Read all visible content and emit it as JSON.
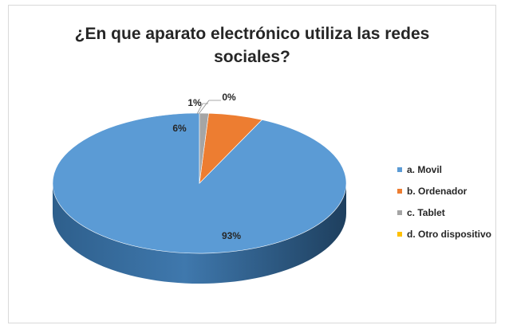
{
  "chart_data": {
    "type": "pie",
    "title_lines": [
      "¿En que aparato electrónico utiliza las redes",
      "sociales?"
    ],
    "categories": [
      "a. Movil",
      "b. Ordenador",
      "c. Tablet",
      "d. Otro dispositivo"
    ],
    "values": [
      93,
      6,
      1,
      0
    ],
    "data_labels": [
      "93%",
      "6%",
      "1%",
      "0%"
    ],
    "colors": [
      "#5b9bd5",
      "#ed7d31",
      "#a5a5a5",
      "#ffc000"
    ],
    "style": "3d",
    "legend_position": "right"
  }
}
